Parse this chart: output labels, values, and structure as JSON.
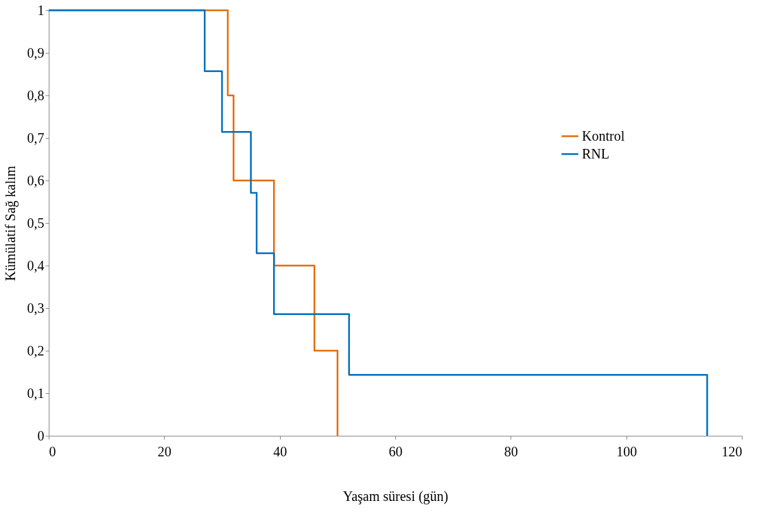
{
  "chart_data": {
    "type": "step",
    "xlabel": "Yaşam süresi (gün)",
    "ylabel": "Kümülatif  Sağ kalım",
    "xlim": [
      0,
      120
    ],
    "xticks": [
      0,
      20,
      40,
      60,
      80,
      100,
      120
    ],
    "ylim": [
      0,
      1
    ],
    "yticks": [
      0,
      {
        "value": 0.1,
        "label": "0,1"
      },
      {
        "value": 0.2,
        "label": "0,2"
      },
      {
        "value": 0.3,
        "label": "0,3"
      },
      {
        "value": 0.4,
        "label": "0,4"
      },
      {
        "value": 0.5,
        "label": "0,5"
      },
      {
        "value": 0.6,
        "label": "0,6"
      },
      {
        "value": 0.7,
        "label": "0,7"
      },
      {
        "value": 0.8,
        "label": "0,8"
      },
      {
        "value": 0.9,
        "label": "0,9"
      },
      1
    ],
    "grid": false,
    "legend": "top right",
    "line_style": "solid",
    "series": [
      {
        "name": "Kontrol",
        "color": "#e46c0a",
        "x": [
          0,
          31,
          32,
          39,
          46,
          50
        ],
        "values": [
          1,
          0.8,
          0.6,
          0.4,
          0.2,
          0
        ]
      },
      {
        "name": "RNL",
        "color": "#0070c0",
        "x": [
          0,
          27,
          30,
          35,
          36,
          39,
          52,
          114
        ],
        "values": [
          1,
          0.857,
          0.714,
          0.571,
          0.429,
          0.286,
          0.143,
          0
        ]
      }
    ]
  }
}
